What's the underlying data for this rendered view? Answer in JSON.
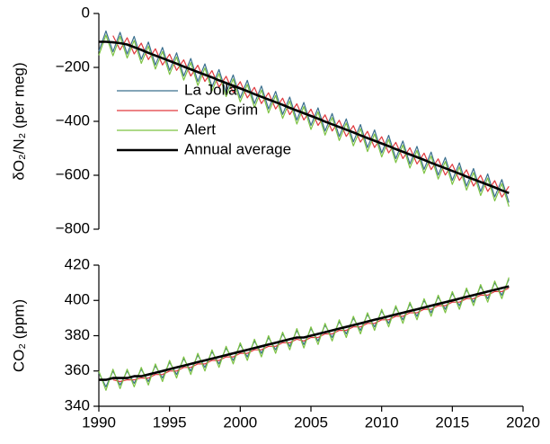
{
  "chart_data": [
    {
      "type": "line",
      "ylabel": "δO₂/N₂ (per meg)",
      "x": [
        1990,
        1990.5,
        1991,
        1991.5,
        1992,
        1992.5,
        1993,
        1993.5,
        1994,
        1994.5,
        1995,
        1995.5,
        1996,
        1996.5,
        1997,
        1997.5,
        1998,
        1998.5,
        1999,
        1999.5,
        2000,
        2000.5,
        2001,
        2001.5,
        2002,
        2002.5,
        2003,
        2003.5,
        2004,
        2004.5,
        2005,
        2005.5,
        2006,
        2006.5,
        2007,
        2007.5,
        2008,
        2008.5,
        2009,
        2009.5,
        2010,
        2010.5,
        2011,
        2011.5,
        2012,
        2012.5,
        2013,
        2013.5,
        2014,
        2014.5,
        2015,
        2015.5,
        2016,
        2016.5,
        2017,
        2017.5,
        2018,
        2018.5,
        2019
      ],
      "series": [
        {
          "name": "La Jolla",
          "color": "#3a6f8e",
          "width": 1.2,
          "values": [
            -140,
            -65,
            -142,
            -70,
            -150,
            -85,
            -170,
            -106,
            -191,
            -126,
            -211,
            -146,
            -232,
            -167,
            -252,
            -187,
            -272,
            -208,
            -293,
            -228,
            -313,
            -248,
            -334,
            -269,
            -354,
            -289,
            -374,
            -310,
            -395,
            -330,
            -415,
            -350,
            -436,
            -371,
            -456,
            -391,
            -476,
            -412,
            -497,
            -432,
            -517,
            -452,
            -538,
            -473,
            -558,
            -493,
            -578,
            -514,
            -599,
            -534,
            -619,
            -554,
            -640,
            -575,
            -660,
            -595,
            -680,
            -616,
            -701
          ]
        },
        {
          "name": "Cape Grim",
          "color": "#e0393e",
          "width": 1.2,
          "values": [
            null,
            null,
            -82,
            -135,
            -90,
            -150,
            -110,
            -171,
            -131,
            -191,
            -151,
            -211,
            -172,
            -232,
            -192,
            -252,
            -212,
            -273,
            -233,
            -293,
            -253,
            -313,
            -274,
            -334,
            -294,
            -354,
            -314,
            -375,
            -335,
            -395,
            -355,
            -415,
            -376,
            -436,
            -396,
            -456,
            -416,
            -477,
            -437,
            -497,
            -457,
            -517,
            -478,
            -538,
            -498,
            -558,
            -518,
            -579,
            -539,
            -599,
            -559,
            -619,
            -580,
            -640,
            -600,
            -660,
            -620,
            -681,
            -641
          ]
        },
        {
          "name": "Alert",
          "color": "#7cc242",
          "width": 1.2,
          "values": [
            -155,
            -80,
            -157,
            -85,
            -165,
            -100,
            -185,
            -121,
            -206,
            -141,
            -226,
            -161,
            -247,
            -182,
            -267,
            -202,
            -287,
            -223,
            -308,
            -243,
            -328,
            -263,
            -349,
            -284,
            -369,
            -304,
            -389,
            -325,
            -410,
            -345,
            -430,
            -365,
            -451,
            -386,
            -471,
            -406,
            -491,
            -427,
            -512,
            -447,
            -532,
            -467,
            -553,
            -488,
            -573,
            -508,
            -593,
            -529,
            -614,
            -549,
            -634,
            -569,
            -655,
            -590,
            -675,
            -610,
            -695,
            -631,
            -716
          ]
        },
        {
          "name": "Annual average",
          "color": "#000000",
          "width": 2.6,
          "values": [
            -105,
            -105,
            -107,
            -110,
            -115,
            -125,
            -135,
            -146,
            -156,
            -166,
            -176,
            -186,
            -197,
            -207,
            -217,
            -227,
            -237,
            -248,
            -258,
            -268,
            -278,
            -288,
            -299,
            -309,
            -319,
            -329,
            -339,
            -350,
            -360,
            -370,
            -380,
            -390,
            -401,
            -411,
            -421,
            -431,
            -441,
            -452,
            -462,
            -472,
            -482,
            -492,
            -503,
            -513,
            -523,
            -533,
            -543,
            -554,
            -564,
            -574,
            -584,
            -594,
            -605,
            -615,
            -625,
            -635,
            -645,
            -656,
            -666
          ]
        }
      ],
      "xlim": [
        1990,
        2020
      ],
      "ylim": [
        -800,
        0
      ],
      "yticks": [
        {
          "value": -800,
          "label": "−800"
        },
        {
          "value": -600,
          "label": "−600"
        },
        {
          "value": -400,
          "label": "−400"
        },
        {
          "value": -200,
          "label": "−200"
        },
        0
      ],
      "legend": "center left"
    },
    {
      "type": "line",
      "ylabel": "CO₂ (ppm)",
      "x": [
        1990,
        1990.5,
        1991,
        1991.5,
        1992,
        1992.5,
        1993,
        1993.5,
        1994,
        1994.5,
        1995,
        1995.5,
        1996,
        1996.5,
        1997,
        1997.5,
        1998,
        1998.5,
        1999,
        1999.5,
        2000,
        2000.5,
        2001,
        2001.5,
        2002,
        2002.5,
        2003,
        2003.5,
        2004,
        2004.5,
        2005,
        2005.5,
        2006,
        2006.5,
        2007,
        2007.5,
        2008,
        2008.5,
        2009,
        2009.5,
        2010,
        2010.5,
        2011,
        2011.5,
        2012,
        2012.5,
        2013,
        2013.5,
        2014,
        2014.5,
        2015,
        2015.5,
        2016,
        2016.5,
        2017,
        2017.5,
        2018,
        2018.5,
        2019
      ],
      "series": [
        {
          "color": "#3a6f8e",
          "width": 1.2,
          "values": [
            359,
            351,
            360,
            352,
            360,
            353,
            361,
            354,
            363,
            356,
            365,
            358,
            367,
            360,
            369,
            362,
            371,
            364,
            373,
            366,
            375,
            368,
            377,
            370,
            379,
            372,
            381,
            374,
            383,
            375,
            384,
            377,
            386,
            379,
            388,
            381,
            390,
            383,
            392,
            385,
            394,
            387,
            396,
            389,
            398,
            391,
            400,
            393,
            402,
            395,
            404,
            397,
            406,
            399,
            408,
            401,
            410,
            403,
            412
          ]
        },
        {
          "color": "#e0393e",
          "width": 1.2,
          "values": [
            null,
            null,
            355,
            354,
            355,
            355,
            356,
            356,
            358,
            358,
            360,
            360,
            362,
            362,
            364,
            364,
            366,
            366,
            368,
            368,
            370,
            370,
            372,
            372,
            374,
            374,
            376,
            376,
            378,
            377,
            379,
            379,
            381,
            381,
            383,
            383,
            385,
            385,
            387,
            387,
            389,
            389,
            391,
            391,
            393,
            393,
            395,
            395,
            397,
            397,
            399,
            399,
            401,
            401,
            403,
            403,
            405,
            405,
            407
          ]
        },
        {
          "color": "#7cc242",
          "width": 1.2,
          "values": [
            360,
            349,
            361,
            350,
            361,
            351,
            362,
            352,
            364,
            354,
            366,
            356,
            368,
            358,
            370,
            360,
            372,
            362,
            374,
            364,
            376,
            366,
            378,
            368,
            380,
            370,
            382,
            372,
            384,
            373,
            385,
            375,
            387,
            377,
            389,
            379,
            391,
            381,
            393,
            383,
            395,
            385,
            397,
            387,
            399,
            389,
            401,
            391,
            403,
            393,
            405,
            395,
            407,
            397,
            409,
            399,
            411,
            401,
            413
          ]
        },
        {
          "color": "#000000",
          "width": 2.6,
          "values": [
            355,
            355,
            356,
            356,
            356,
            357,
            357,
            358,
            359,
            360,
            361,
            362,
            363,
            364,
            365,
            366,
            367,
            368,
            369,
            370,
            371,
            372,
            373,
            374,
            375,
            376,
            377,
            378,
            379,
            379,
            380,
            381,
            382,
            383,
            384,
            385,
            386,
            387,
            388,
            389,
            390,
            391,
            392,
            393,
            394,
            395,
            396,
            397,
            398,
            399,
            400,
            401,
            402,
            403,
            404,
            405,
            406,
            407,
            408
          ]
        }
      ],
      "xlim": [
        1990,
        2020
      ],
      "xticks": [
        1990,
        1995,
        2000,
        2005,
        2010,
        2015,
        2020
      ],
      "ylim": [
        340,
        420
      ],
      "yticks": [
        340,
        360,
        380,
        400,
        420
      ]
    }
  ]
}
